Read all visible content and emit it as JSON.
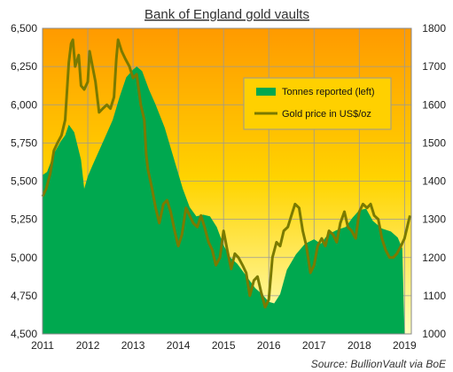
{
  "chart_data": {
    "type": "area",
    "title": "Bank of England gold vaults",
    "source": "Source: BullionVault via BoE",
    "x_ticks": [
      "2011",
      "2012",
      "2013",
      "2014",
      "2015",
      "2016",
      "2017",
      "2018",
      "2019"
    ],
    "y_left": {
      "ylim": [
        4500,
        6500
      ],
      "ticks": [
        "4,500",
        "4,750",
        "5,000",
        "5,250",
        "5,500",
        "5,750",
        "6,000",
        "6,250",
        "6,500"
      ]
    },
    "y_right": {
      "ylim": [
        1000,
        1800
      ],
      "ticks": [
        "1000",
        "1100",
        "1200",
        "1300",
        "1400",
        "1500",
        "1600",
        "1700",
        "1800"
      ]
    },
    "grid": true,
    "legend_position": "top-right",
    "series": [
      {
        "name": "Tonnes reported (left)",
        "type": "area",
        "axis": "left",
        "color": "#00a84f",
        "points": [
          [
            2011.0,
            5540
          ],
          [
            2011.1,
            5560
          ],
          [
            2011.25,
            5680
          ],
          [
            2011.4,
            5760
          ],
          [
            2011.5,
            5800
          ],
          [
            2011.58,
            5870
          ],
          [
            2011.7,
            5820
          ],
          [
            2011.85,
            5640
          ],
          [
            2011.92,
            5450
          ],
          [
            2012.0,
            5530
          ],
          [
            2012.1,
            5600
          ],
          [
            2012.25,
            5700
          ],
          [
            2012.4,
            5800
          ],
          [
            2012.55,
            5900
          ],
          [
            2012.7,
            6050
          ],
          [
            2012.85,
            6180
          ],
          [
            2013.0,
            6230
          ],
          [
            2013.08,
            6250
          ],
          [
            2013.2,
            6220
          ],
          [
            2013.35,
            6100
          ],
          [
            2013.5,
            6000
          ],
          [
            2013.7,
            5850
          ],
          [
            2013.9,
            5650
          ],
          [
            2014.1,
            5450
          ],
          [
            2014.25,
            5330
          ],
          [
            2014.4,
            5270
          ],
          [
            2014.55,
            5280
          ],
          [
            2014.7,
            5270
          ],
          [
            2014.85,
            5200
          ],
          [
            2015.0,
            5080
          ],
          [
            2015.15,
            5000
          ],
          [
            2015.3,
            4960
          ],
          [
            2015.5,
            4880
          ],
          [
            2015.7,
            4800
          ],
          [
            2015.85,
            4760
          ],
          [
            2016.0,
            4710
          ],
          [
            2016.12,
            4700
          ],
          [
            2016.25,
            4760
          ],
          [
            2016.4,
            4920
          ],
          [
            2016.6,
            5020
          ],
          [
            2016.8,
            5090
          ],
          [
            2017.0,
            5120
          ],
          [
            2017.15,
            5090
          ],
          [
            2017.3,
            5150
          ],
          [
            2017.5,
            5180
          ],
          [
            2017.7,
            5200
          ],
          [
            2017.85,
            5260
          ],
          [
            2018.0,
            5310
          ],
          [
            2018.15,
            5320
          ],
          [
            2018.3,
            5240
          ],
          [
            2018.5,
            5190
          ],
          [
            2018.7,
            5170
          ],
          [
            2018.85,
            5130
          ],
          [
            2018.95,
            5060
          ],
          [
            2019.0,
            4500
          ]
        ]
      },
      {
        "name": "Gold price in US$/oz",
        "type": "line",
        "axis": "right",
        "color": "#7a7a00",
        "points": [
          [
            2011.0,
            1360
          ],
          [
            2011.08,
            1380
          ],
          [
            2011.17,
            1420
          ],
          [
            2011.25,
            1480
          ],
          [
            2011.33,
            1500
          ],
          [
            2011.42,
            1520
          ],
          [
            2011.5,
            1560
          ],
          [
            2011.58,
            1710
          ],
          [
            2011.63,
            1760
          ],
          [
            2011.67,
            1770
          ],
          [
            2011.72,
            1700
          ],
          [
            2011.8,
            1730
          ],
          [
            2011.85,
            1650
          ],
          [
            2011.92,
            1640
          ],
          [
            2012.0,
            1660
          ],
          [
            2012.04,
            1740
          ],
          [
            2012.12,
            1690
          ],
          [
            2012.17,
            1660
          ],
          [
            2012.25,
            1580
          ],
          [
            2012.33,
            1590
          ],
          [
            2012.42,
            1600
          ],
          [
            2012.5,
            1590
          ],
          [
            2012.58,
            1620
          ],
          [
            2012.63,
            1720
          ],
          [
            2012.67,
            1770
          ],
          [
            2012.75,
            1740
          ],
          [
            2012.83,
            1720
          ],
          [
            2012.92,
            1700
          ],
          [
            2013.0,
            1670
          ],
          [
            2013.08,
            1680
          ],
          [
            2013.17,
            1600
          ],
          [
            2013.25,
            1560
          ],
          [
            2013.29,
            1470
          ],
          [
            2013.33,
            1430
          ],
          [
            2013.42,
            1380
          ],
          [
            2013.5,
            1330
          ],
          [
            2013.58,
            1290
          ],
          [
            2013.67,
            1340
          ],
          [
            2013.75,
            1350
          ],
          [
            2013.83,
            1320
          ],
          [
            2013.92,
            1270
          ],
          [
            2014.0,
            1230
          ],
          [
            2014.08,
            1260
          ],
          [
            2014.17,
            1330
          ],
          [
            2014.25,
            1310
          ],
          [
            2014.33,
            1290
          ],
          [
            2014.42,
            1280
          ],
          [
            2014.5,
            1310
          ],
          [
            2014.58,
            1280
          ],
          [
            2014.67,
            1240
          ],
          [
            2014.75,
            1220
          ],
          [
            2014.83,
            1180
          ],
          [
            2014.92,
            1200
          ],
          [
            2015.0,
            1270
          ],
          [
            2015.08,
            1220
          ],
          [
            2015.17,
            1170
          ],
          [
            2015.25,
            1210
          ],
          [
            2015.33,
            1200
          ],
          [
            2015.42,
            1180
          ],
          [
            2015.5,
            1160
          ],
          [
            2015.58,
            1100
          ],
          [
            2015.67,
            1140
          ],
          [
            2015.75,
            1150
          ],
          [
            2015.83,
            1110
          ],
          [
            2015.92,
            1070
          ],
          [
            2016.0,
            1090
          ],
          [
            2016.08,
            1200
          ],
          [
            2016.17,
            1240
          ],
          [
            2016.25,
            1230
          ],
          [
            2016.33,
            1270
          ],
          [
            2016.42,
            1280
          ],
          [
            2016.5,
            1310
          ],
          [
            2016.58,
            1340
          ],
          [
            2016.67,
            1330
          ],
          [
            2016.75,
            1270
          ],
          [
            2016.83,
            1230
          ],
          [
            2016.92,
            1160
          ],
          [
            2017.0,
            1180
          ],
          [
            2017.08,
            1230
          ],
          [
            2017.17,
            1250
          ],
          [
            2017.25,
            1230
          ],
          [
            2017.33,
            1270
          ],
          [
            2017.42,
            1260
          ],
          [
            2017.5,
            1240
          ],
          [
            2017.58,
            1290
          ],
          [
            2017.67,
            1320
          ],
          [
            2017.75,
            1280
          ],
          [
            2017.83,
            1270
          ],
          [
            2017.92,
            1250
          ],
          [
            2018.0,
            1320
          ],
          [
            2018.08,
            1340
          ],
          [
            2018.17,
            1330
          ],
          [
            2018.25,
            1340
          ],
          [
            2018.33,
            1310
          ],
          [
            2018.42,
            1300
          ],
          [
            2018.5,
            1250
          ],
          [
            2018.58,
            1220
          ],
          [
            2018.67,
            1200
          ],
          [
            2018.75,
            1200
          ],
          [
            2018.83,
            1210
          ],
          [
            2018.92,
            1230
          ],
          [
            2019.0,
            1250
          ],
          [
            2019.08,
            1290
          ],
          [
            2019.12,
            1310
          ]
        ]
      }
    ]
  }
}
